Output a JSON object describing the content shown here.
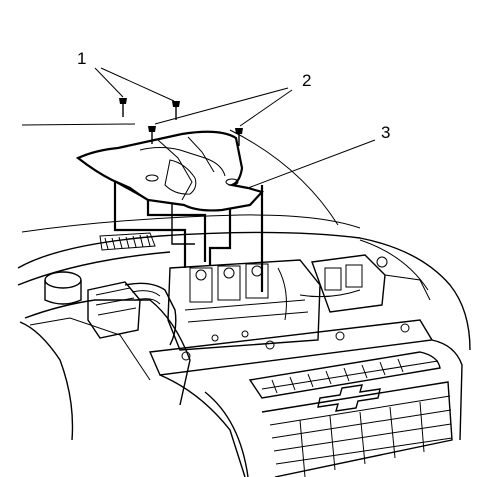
{
  "diagram": {
    "callouts": [
      {
        "id": "1",
        "label": "1"
      },
      {
        "id": "2",
        "label": "2"
      },
      {
        "id": "3",
        "label": "3"
      }
    ],
    "vehicle_emblem": "bowtie-emblem-icon"
  }
}
